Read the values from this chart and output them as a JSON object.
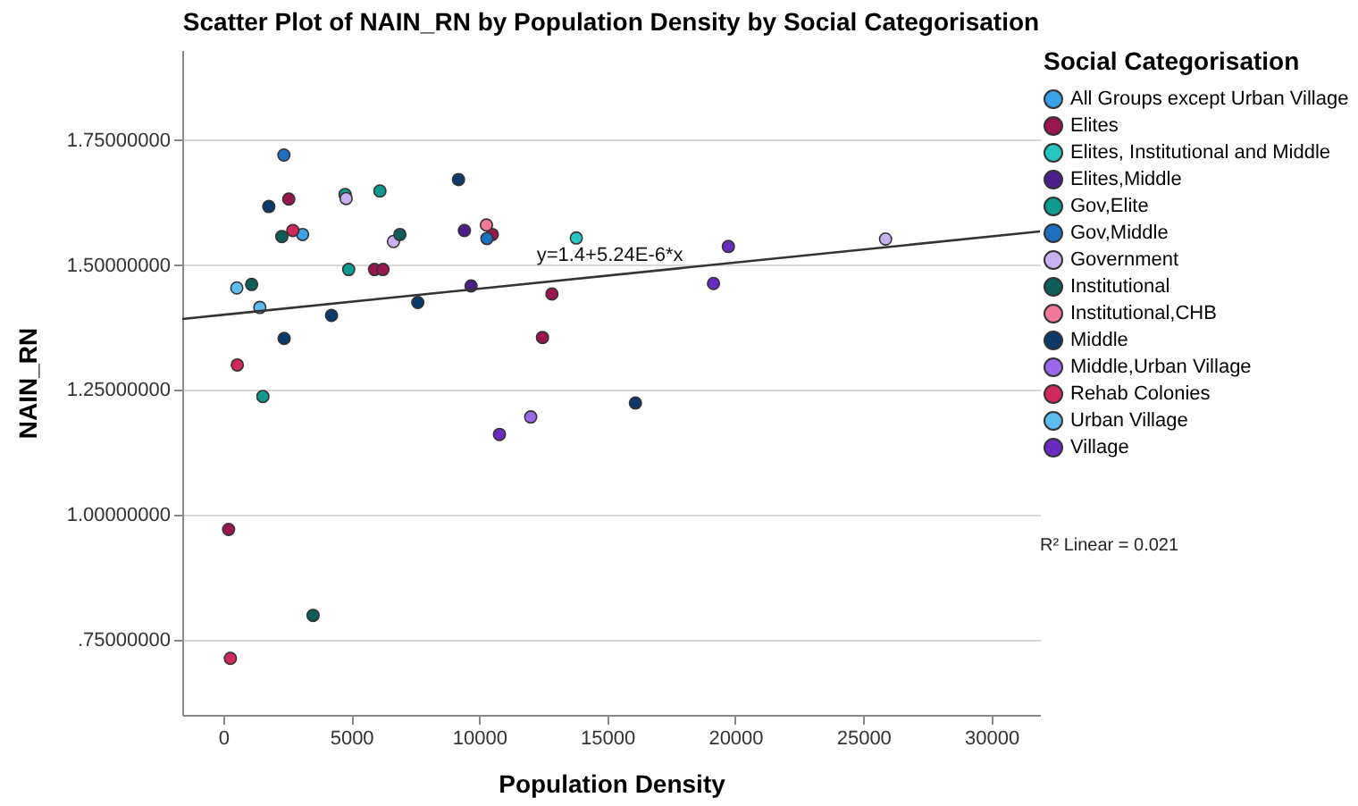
{
  "chart_data": {
    "type": "scatter",
    "title": "Scatter Plot of NAIN_RN by Population Density by Social Categorisation",
    "xlabel": "Population Density",
    "ylabel": "NAIN_RN",
    "legend_title": "Social Categorisation",
    "xlim": [
      -1600,
      31900
    ],
    "ylim": [
      0.6,
      1.93
    ],
    "xticks": [
      0,
      5000,
      10000,
      15000,
      20000,
      25000,
      30000
    ],
    "yticks": [
      {
        "value": 0.75,
        "label": ".75000000"
      },
      {
        "value": 1.0,
        "label": "1.00000000"
      },
      {
        "value": 1.25,
        "label": "1.25000000"
      },
      {
        "value": 1.5,
        "label": "1.50000000"
      },
      {
        "value": 1.75,
        "label": "1.75000000"
      }
    ],
    "grid": "y",
    "legend": "right",
    "marker": "circle",
    "annotations": [
      {
        "text": "y=1.4+5.24E-6*x",
        "x": 15100,
        "y": 1.479
      },
      "R² Linear = 0.021"
    ],
    "series": [
      {
        "name": "All Groups except Urban Village",
        "color": "#3aa0e8",
        "x": [
          3100
        ],
        "values": [
          1.561
        ]
      },
      {
        "name": "Elites",
        "color": "#9b1650",
        "x": [
          2560,
          10510,
          5910,
          6240,
          210,
          12840,
          12470
        ],
        "values": [
          1.632,
          1.561,
          1.491,
          1.491,
          0.971,
          1.442,
          1.355
        ]
      },
      {
        "name": "Elites, Institutional and Middle",
        "color": "#27c5c0",
        "x": [
          13790
        ],
        "values": [
          1.554
        ]
      },
      {
        "name": "Elites,Middle",
        "color": "#4b1f8c",
        "x": [
          9420,
          9680
        ],
        "values": [
          1.569,
          1.458
        ]
      },
      {
        "name": "Gov,Elite",
        "color": "#0f9a90",
        "x": [
          4760,
          6120,
          4900,
          1550
        ],
        "values": [
          1.641,
          1.648,
          1.491,
          1.237
        ]
      },
      {
        "name": "Gov,Middle",
        "color": "#1e6fc0",
        "x": [
          2370,
          10300
        ],
        "values": [
          1.72,
          1.553
        ]
      },
      {
        "name": "Government",
        "color": "#c9b0f0",
        "x": [
          4800,
          6650,
          25870
        ],
        "values": [
          1.633,
          1.547,
          1.552
        ]
      },
      {
        "name": "Institutional",
        "color": "#0d5e58",
        "x": [
          2290,
          6900,
          1110,
          3510
        ],
        "values": [
          1.557,
          1.561,
          1.461,
          0.799
        ]
      },
      {
        "name": "Institutional,CHB",
        "color": "#f07898",
        "x": [
          10280
        ],
        "values": [
          1.58
        ]
      },
      {
        "name": "Middle",
        "color": "#0b3a6b",
        "x": [
          1780,
          9190,
          4230,
          7600,
          2380,
          16100
        ],
        "values": [
          1.617,
          1.671,
          1.399,
          1.425,
          1.353,
          1.224
        ]
      },
      {
        "name": "Middle,Urban Village",
        "color": "#9a68e8",
        "x": [
          12010
        ],
        "values": [
          1.196
        ]
      },
      {
        "name": "Rehab Colonies",
        "color": "#d0285a",
        "x": [
          2720,
          550,
          280
        ],
        "values": [
          1.569,
          1.3,
          0.713
        ]
      },
      {
        "name": "Urban Village",
        "color": "#5cbcf0",
        "x": [
          530,
          1430
        ],
        "values": [
          1.454,
          1.415
        ]
      },
      {
        "name": "Village",
        "color": "#6a2cc0",
        "x": [
          10790,
          19730,
          19150
        ],
        "values": [
          1.161,
          1.537,
          1.463
        ]
      },
      {
        "type": "line",
        "marker": "none",
        "color": "#333333",
        "x": [
          -1600,
          31900
        ],
        "values": [
          1.392,
          1.567
        ]
      }
    ]
  }
}
